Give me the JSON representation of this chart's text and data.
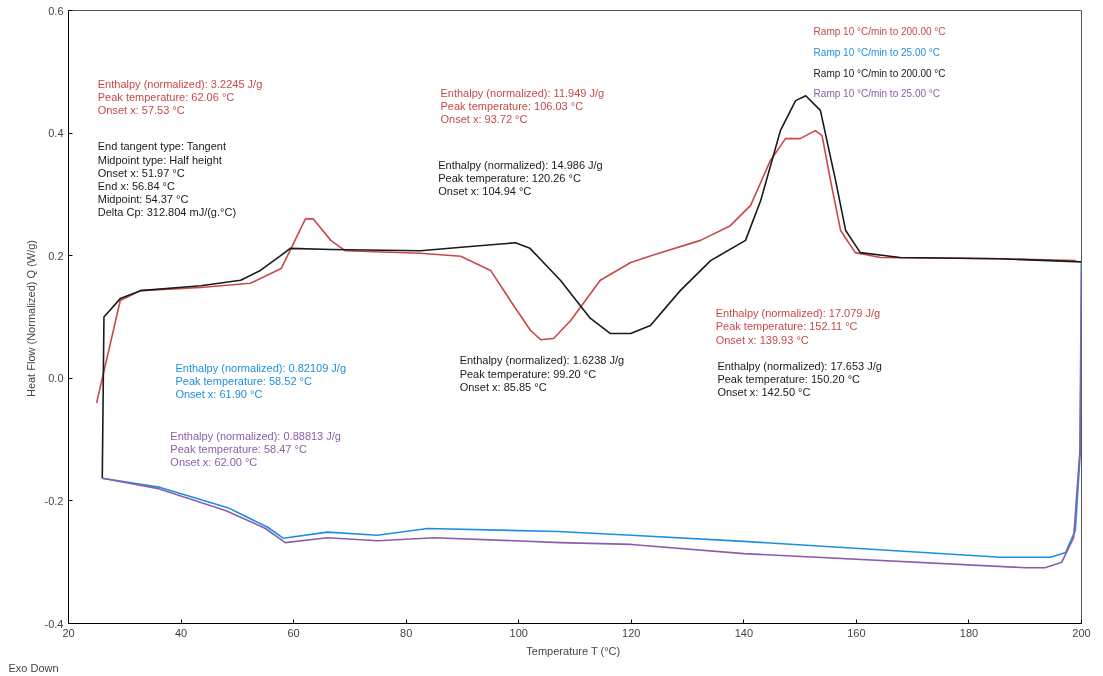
{
  "chart_data": {
    "type": "line",
    "xlabel": "Temperature  T (°C)",
    "ylabel": "Heat Flow (Normalized)  Q (W/g)",
    "xlim": [
      20,
      200
    ],
    "ylim": [
      -0.4,
      0.6
    ],
    "xticks": [
      20,
      40,
      60,
      80,
      100,
      120,
      140,
      160,
      180,
      200
    ],
    "yticks": [
      {
        "value": -0.4,
        "label": "-0.4"
      },
      {
        "value": -0.2,
        "label": "-0.2"
      },
      {
        "value": 0,
        "label": "0.0"
      },
      {
        "value": 0.2,
        "label": "0.2"
      },
      {
        "value": 0.4,
        "label": "0.4"
      },
      {
        "value": 0.6,
        "label": "0.6"
      }
    ],
    "grid": false,
    "legend": "top right",
    "marker": "none",
    "line_style": "solid",
    "series": [
      {
        "name": "Ramp 10 °C/min to 200.00 °C",
        "color": "#c8494b",
        "x": [
          25.0,
          29.2,
          32.8,
          43.5,
          52.3,
          57.8,
          62.1,
          63.5,
          66.6,
          69.2,
          82.5,
          89.7,
          95.0,
          98.5,
          102.1,
          103.9,
          106.2,
          109.2,
          114.5,
          119.9,
          125.2,
          132.3,
          137.6,
          141.2,
          144.7,
          147.4,
          150.0,
          152.7,
          153.9,
          155.4,
          157.2,
          159.8,
          164.3,
          185.6,
          199.0
        ],
        "values": [
          -0.04,
          0.127,
          0.143,
          0.148,
          0.155,
          0.179,
          0.26,
          0.26,
          0.225,
          0.208,
          0.204,
          0.199,
          0.176,
          0.127,
          0.078,
          0.063,
          0.065,
          0.094,
          0.16,
          0.189,
          0.205,
          0.225,
          0.249,
          0.282,
          0.355,
          0.391,
          0.391,
          0.404,
          0.396,
          0.323,
          0.241,
          0.205,
          0.197,
          0.195,
          0.192
        ]
      },
      {
        "name": "Ramp 10 °C/min to 25.00 °C",
        "color": "#1e8ee0",
        "x": [
          200.0,
          199.8,
          198.9,
          197.2,
          194.5,
          185.6,
          140.0,
          120.0,
          107.0,
          83.8,
          74.9,
          66.0,
          58.2,
          55.4,
          48.3,
          36.3,
          26.0
        ],
        "values": [
          0.189,
          -0.118,
          -0.248,
          -0.284,
          -0.292,
          -0.292,
          -0.266,
          -0.256,
          -0.25,
          -0.245,
          -0.256,
          -0.251,
          -0.261,
          -0.243,
          -0.211,
          -0.178,
          -0.163
        ]
      },
      {
        "name": "Ramp 10 °C/min to 200.00 °C",
        "color": "#1a1a1a",
        "x": [
          26.0,
          26.3,
          29.2,
          32.8,
          43.5,
          50.6,
          54.1,
          57.7,
          59.4,
          66.6,
          82.5,
          91.4,
          99.4,
          102.0,
          107.4,
          112.7,
          116.3,
          119.9,
          123.4,
          128.7,
          134.1,
          140.3,
          143.0,
          146.5,
          149.2,
          151.0,
          153.6,
          156.3,
          158.1,
          160.7,
          167.8,
          185.6,
          200.0
        ],
        "values": [
          -0.163,
          0.1,
          0.13,
          0.143,
          0.151,
          0.16,
          0.176,
          0.2,
          0.212,
          0.21,
          0.208,
          0.215,
          0.221,
          0.212,
          0.16,
          0.098,
          0.073,
          0.073,
          0.086,
          0.143,
          0.192,
          0.225,
          0.29,
          0.404,
          0.453,
          0.461,
          0.437,
          0.323,
          0.241,
          0.205,
          0.197,
          0.195,
          0.19
        ]
      },
      {
        "name": "Ramp 10 °C/min to 25.00 °C",
        "color": "#8a5fa8",
        "x": [
          200.0,
          199.7,
          198.6,
          196.5,
          193.5,
          190.0,
          140.0,
          120.0,
          107.4,
          85.0,
          75.0,
          66.0,
          58.5,
          55.0,
          48.0,
          36.0,
          26.0
        ],
        "values": [
          0.189,
          -0.12,
          -0.26,
          -0.3,
          -0.309,
          -0.309,
          -0.286,
          -0.271,
          -0.268,
          -0.26,
          -0.265,
          -0.26,
          -0.268,
          -0.245,
          -0.216,
          -0.18,
          -0.163
        ]
      }
    ],
    "annotations": [
      "Enthalpy (normalized): 3.2245 J/g\nPeak temperature: 62.06 °C\nOnset x: 57.53 °C",
      "End tangent type: Tangent\nMidpoint type: Half height\nOnset x: 51.97 °C\nEnd x: 56.84 °C\nMidpoint: 54.37 °C\nDelta Cp: 312.804 mJ/(g.°C)",
      "Enthalpy (normalized): 11.949 J/g\nPeak temperature: 106.03 °C\nOnset x: 93.72 °C",
      "Enthalpy (normalized): 14.986 J/g\nPeak temperature: 120.26 °C\nOnset x: 104.94 °C",
      "Enthalpy (normalized): 17.079 J/g\nPeak temperature: 152.11 °C\nOnset x: 139.93 °C",
      "Enthalpy (normalized): 0.82109 J/g\nPeak temperature: 58.52 °C\nOnset x: 61.90 °C",
      "Enthalpy (normalized): 1.6238 J/g\nPeak temperature: 99.20 °C\nOnset x: 85.85 °C",
      "Enthalpy (normalized): 17.653 J/g\nPeak temperature: 150.20 °C\nOnset x: 142.50 °C",
      "Enthalpy (normalized): 0.88813 J/g\nPeak temperature: 58.47 °C\nOnset x: 62.00 °C",
      "Exo Down"
    ]
  }
}
